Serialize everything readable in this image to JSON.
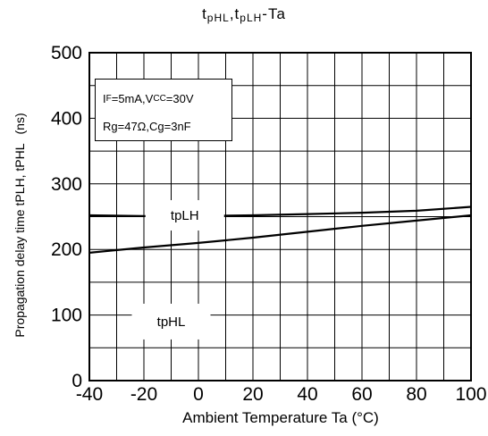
{
  "chart_data": {
    "type": "line",
    "title_parts": {
      "t1": "t",
      "s1": "pHL",
      "sep": ",",
      "t2": "t",
      "s2": "pLH",
      "tail": "-Ta"
    },
    "xlabel": "Ambient Temperature Ta (°C)",
    "ylabel": "Propagation delay time   tPLH, tPHL",
    "yunit": "(ns)",
    "xlim": [
      -40,
      100
    ],
    "ylim": [
      0,
      500
    ],
    "x_ticks": [
      "-40",
      "-20",
      "0",
      "20",
      "40",
      "60",
      "80",
      "100"
    ],
    "y_ticks": [
      "0",
      "100",
      "200",
      "300",
      "400",
      "500"
    ],
    "grid": true,
    "conditions": {
      "line1": {
        "a": "I",
        "a_sub": "F",
        "b": "=5mA,V",
        "b_sub": "CC",
        "c": "=30V"
      },
      "line2": "Rg=47Ω,Cg=3nF"
    },
    "series": [
      {
        "name": "tpLH",
        "x": [
          -40,
          -20,
          0,
          20,
          40,
          60,
          80,
          100
        ],
        "values": [
          252,
          251,
          251,
          252,
          254,
          256,
          259,
          265
        ]
      },
      {
        "name": "tpHL",
        "x": [
          -40,
          -20,
          0,
          20,
          40,
          60,
          80,
          100
        ],
        "values": [
          195,
          203,
          210,
          218,
          227,
          236,
          244,
          252
        ]
      }
    ]
  }
}
